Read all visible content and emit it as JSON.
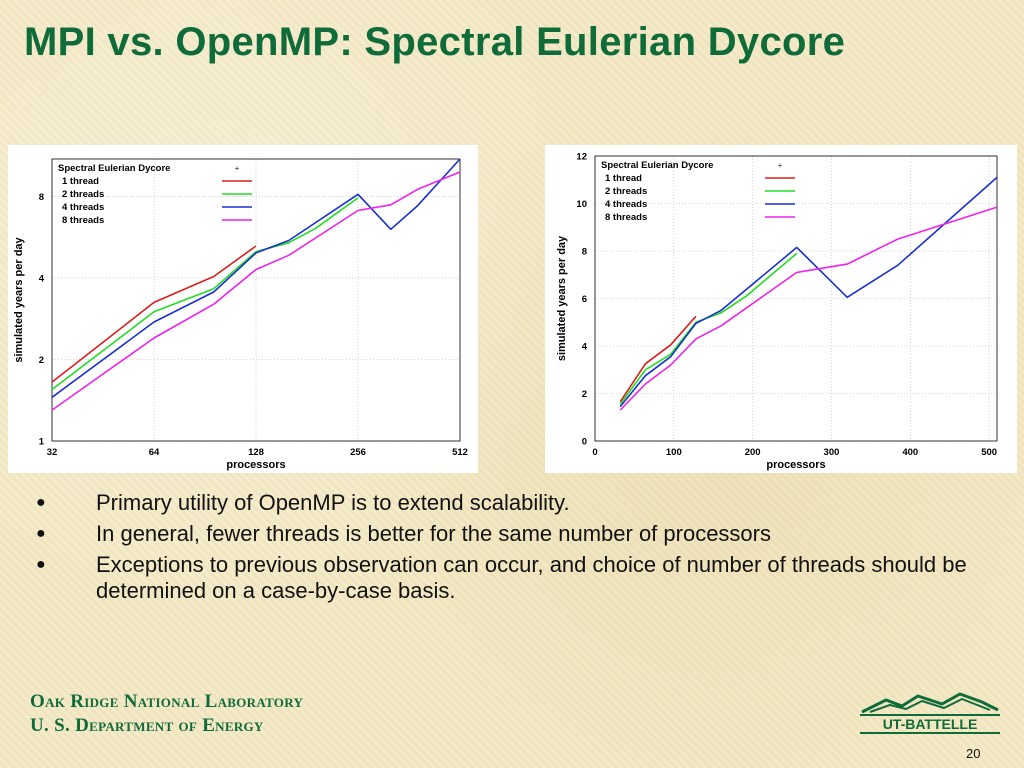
{
  "slide": {
    "title": "MPI vs. OpenMP: Spectral Eulerian Dycore",
    "bullets": [
      "Primary utility of OpenMP is to extend scalability.",
      "In general, fewer threads is better for the same number of processors",
      "Exceptions to previous observation can occur, and choice of number of threads should be determined on a case-by-case basis."
    ],
    "org_line1": "Oak Ridge National Laboratory",
    "org_line2": "U. S. Department of Energy",
    "logo_text": "UT-BATTELLE",
    "page_number": "20",
    "colors": {
      "title": "#0f6b3a",
      "background": "#f4e9c3"
    }
  },
  "chart_data": [
    {
      "type": "line",
      "scale": "log-log",
      "xlabel": "processors",
      "ylabel": "simulated years per day",
      "xticks": [
        32,
        64,
        128,
        256,
        512
      ],
      "yticks": [
        1,
        2,
        4,
        8
      ],
      "xlim": [
        32,
        512
      ],
      "ylim": [
        1,
        11
      ],
      "grid": true,
      "legend": {
        "placement": "top-left",
        "title": "Spectral Eulerian Dycore",
        "title_marker": "+"
      },
      "series": [
        {
          "name": "1 thread",
          "color": "#dd1c1c",
          "points": [
            [
              32,
              1.65
            ],
            [
              64,
              3.25
            ],
            [
              96,
              4.05
            ],
            [
              128,
              5.25
            ]
          ]
        },
        {
          "name": "2 threads",
          "color": "#22dd22",
          "points": [
            [
              32,
              1.55
            ],
            [
              64,
              3.0
            ],
            [
              96,
              3.65
            ],
            [
              128,
              5.0
            ],
            [
              160,
              5.4
            ],
            [
              192,
              6.1
            ],
            [
              256,
              7.9
            ]
          ]
        },
        {
          "name": "4 threads",
          "color": "#1a2fd0",
          "points": [
            [
              32,
              1.45
            ],
            [
              64,
              2.75
            ],
            [
              96,
              3.55
            ],
            [
              128,
              4.95
            ],
            [
              160,
              5.5
            ],
            [
              256,
              8.15
            ],
            [
              320,
              6.05
            ],
            [
              384,
              7.4
            ],
            [
              512,
              11.1
            ]
          ]
        },
        {
          "name": "8 threads",
          "color": "#ee22ee",
          "points": [
            [
              32,
              1.3
            ],
            [
              64,
              2.4
            ],
            [
              96,
              3.2
            ],
            [
              128,
              4.3
            ],
            [
              160,
              4.85
            ],
            [
              256,
              7.1
            ],
            [
              320,
              7.45
            ],
            [
              384,
              8.5
            ],
            [
              512,
              9.85
            ]
          ]
        }
      ]
    },
    {
      "type": "line",
      "xlabel": "processors",
      "ylabel": "simulated years per day",
      "xticks": [
        0,
        100,
        200,
        300,
        400,
        500
      ],
      "yticks": [
        0,
        2,
        4,
        6,
        8,
        10,
        12
      ],
      "xlim": [
        0,
        510
      ],
      "ylim": [
        0,
        12
      ],
      "grid": true,
      "legend": {
        "placement": "top-left",
        "title": "Spectral Eulerian Dycore",
        "title_marker": "+"
      },
      "series": [
        {
          "name": "1 thread",
          "color": "#dd1c1c",
          "points": [
            [
              32,
              1.65
            ],
            [
              64,
              3.25
            ],
            [
              96,
              4.05
            ],
            [
              128,
              5.25
            ]
          ]
        },
        {
          "name": "2 threads",
          "color": "#22dd22",
          "points": [
            [
              32,
              1.55
            ],
            [
              64,
              3.0
            ],
            [
              96,
              3.65
            ],
            [
              128,
              5.0
            ],
            [
              160,
              5.4
            ],
            [
              192,
              6.1
            ],
            [
              256,
              7.9
            ]
          ]
        },
        {
          "name": "4 threads",
          "color": "#1a2fd0",
          "points": [
            [
              32,
              1.45
            ],
            [
              64,
              2.75
            ],
            [
              96,
              3.55
            ],
            [
              128,
              4.95
            ],
            [
              160,
              5.5
            ],
            [
              256,
              8.15
            ],
            [
              320,
              6.05
            ],
            [
              384,
              7.4
            ],
            [
              512,
              11.1
            ]
          ]
        },
        {
          "name": "8 threads",
          "color": "#ee22ee",
          "points": [
            [
              32,
              1.3
            ],
            [
              64,
              2.4
            ],
            [
              96,
              3.2
            ],
            [
              128,
              4.3
            ],
            [
              160,
              4.85
            ],
            [
              256,
              7.1
            ],
            [
              320,
              7.45
            ],
            [
              384,
              8.5
            ],
            [
              512,
              9.85
            ]
          ]
        }
      ]
    }
  ]
}
